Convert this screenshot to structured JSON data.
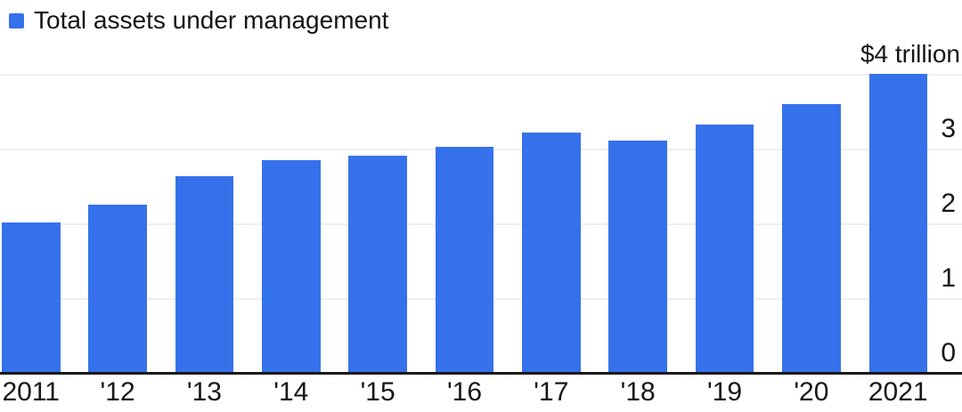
{
  "legend": {
    "label": "Total assets under management"
  },
  "colors": {
    "bar": "#3571EB",
    "gridline": "#efeeec",
    "baseline": "#1a1a1a",
    "text": "#161616",
    "background": "#ffffff"
  },
  "chart_data": {
    "type": "bar",
    "title": "Total assets under management",
    "categories": [
      "2011",
      "'12",
      "'13",
      "'14",
      "'15",
      "'16",
      "'17",
      "'18",
      "'19",
      "'20",
      "2021"
    ],
    "values": [
      2.01,
      2.25,
      2.63,
      2.85,
      2.9,
      3.02,
      3.21,
      3.11,
      3.32,
      3.6,
      4.0
    ],
    "unit": "$ trillion",
    "ylim": [
      0,
      4
    ],
    "y_ticks": [
      {
        "value": 4,
        "label": "$4 trillion"
      },
      {
        "value": 3,
        "label": "3"
      },
      {
        "value": 2,
        "label": "2"
      },
      {
        "value": 1,
        "label": "1"
      },
      {
        "value": 0,
        "label": "0"
      }
    ],
    "grid": true,
    "legend_position": "top-left"
  }
}
